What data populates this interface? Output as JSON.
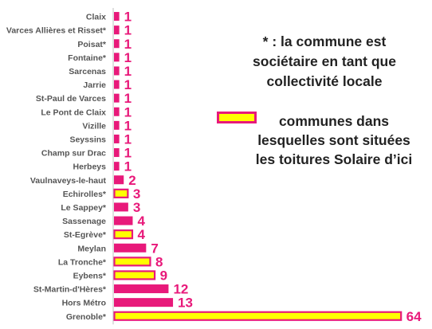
{
  "note": {
    "lines": [
      "* : la commune est",
      "sociétaire en tant que",
      "collectivité locale"
    ]
  },
  "legend": {
    "lines": [
      "communes dans",
      "lesquelles sont situées",
      "les toitures Solaire d’ici"
    ],
    "swatch_fill": "#ffff00",
    "swatch_border": "#e8197a"
  },
  "colors": {
    "bar_pink": "#e8197a",
    "bar_yellow": "#ffff00",
    "bar_border": "#e8197a",
    "value_text": "#e8197a",
    "category_text": "#555555"
  },
  "chart_data": {
    "type": "bar",
    "orientation": "horizontal",
    "categories": [
      "Claix",
      "Varces Allières et Risset*",
      "Poisat*",
      "Fontaine*",
      "Sarcenas",
      "Jarrie",
      "St-Paul de Varces",
      "Le Pont de Claix",
      "Vizille",
      "Seyssins",
      "Champ sur Drac",
      "Herbeys",
      "Vaulnaveys-le-haut",
      "Echirolles*",
      "Le Sappey*",
      "Sassenage",
      "St-Egrève*",
      "Meylan",
      "La Tronche*",
      "Eybens*",
      "St-Martin-d'Hères*",
      "Hors Métro",
      "Grenoble*"
    ],
    "values": [
      1,
      1,
      1,
      1,
      1,
      1,
      1,
      1,
      1,
      1,
      1,
      1,
      2,
      3,
      3,
      4,
      4,
      7,
      8,
      9,
      12,
      13,
      64
    ],
    "value_labels": [
      "1",
      "1",
      "1",
      "1",
      "1",
      "1",
      "1",
      "1",
      "1",
      "1",
      "1",
      "1",
      "2",
      "3",
      "3",
      "4",
      "4",
      "7",
      "8",
      "9",
      "12",
      "13",
      "64"
    ],
    "fill": [
      "pink",
      "pink",
      "pink",
      "pink",
      "pink",
      "pink",
      "pink",
      "pink",
      "pink",
      "pink",
      "pink",
      "pink",
      "pink",
      "yellow",
      "pink",
      "pink",
      "yellow",
      "pink",
      "yellow",
      "yellow",
      "pink",
      "pink",
      "yellow"
    ],
    "xlim": [
      0,
      64
    ],
    "grid": false,
    "data_labels": true,
    "legend_position": "right"
  }
}
